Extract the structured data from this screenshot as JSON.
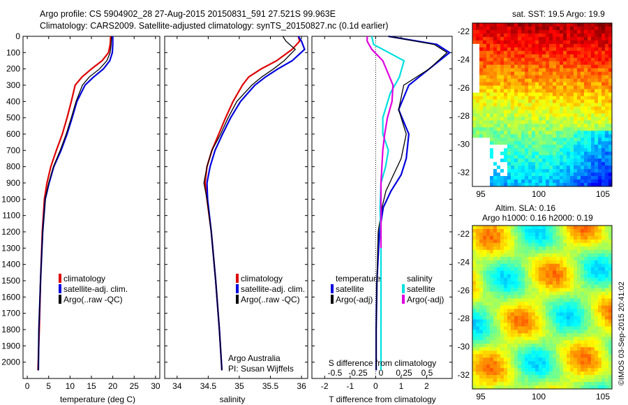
{
  "header": {
    "line1": "Argo profile: CS 5904902_28 27-Aug-2015 20150831_591 27.521S 99.963E",
    "line2": "Climatology: CARS2009. Satellite-adjusted climatology: synTS_20150827.nc (0.1d earlier)"
  },
  "sst_title": "sat. SST: 19.5 Argo: 19.9",
  "sla_title1": "Altim. SLA: 0.16",
  "sla_title2": "Argo h1000: 0.16 h2000: 0.19",
  "stamp": "©IMOS 03-Sep-2015 20:41:02",
  "credit1": "Argo Australia",
  "credit2": "PI: Susan Wijffels",
  "colors": {
    "climatology": "#dd0000",
    "satellite": "#0000dd",
    "argo": "#000000",
    "sal_sat": "#00e0e0",
    "sal_argo": "#e000e0"
  },
  "chart_data": [
    {
      "type": "line",
      "xlabel": "temperature (deg C)",
      "xlim": [
        -1,
        31
      ],
      "xticks": [
        0,
        5,
        10,
        15,
        20,
        25,
        30
      ],
      "ylim": [
        0,
        2100
      ],
      "yticks": [
        0,
        100,
        200,
        300,
        400,
        500,
        600,
        700,
        800,
        900,
        1000,
        1100,
        1200,
        1300,
        1400,
        1500,
        1600,
        1700,
        1800,
        1900,
        2000
      ],
      "legend": [
        "climatology",
        "satellite-adj. clim.",
        "Argo(..raw -QC)"
      ],
      "series": [
        {
          "name": "climatology",
          "color": "climatology",
          "x": [
            19.5,
            19.4,
            19.0,
            17.5,
            15.0,
            12.8,
            11.2,
            10.3,
            9.3,
            8.2,
            6.8,
            5.5,
            4.6,
            4.0,
            3.5,
            3.1,
            2.8,
            2.5
          ],
          "y": [
            0,
            50,
            100,
            150,
            200,
            250,
            300,
            400,
            500,
            600,
            700,
            800,
            900,
            1000,
            1200,
            1500,
            1800,
            2050
          ]
        },
        {
          "name": "satellite-adj. clim.",
          "color": "satellite",
          "x": [
            20.0,
            20.0,
            19.9,
            19.3,
            17.8,
            15.5,
            13.5,
            11.6,
            10.5,
            9.3,
            7.9,
            6.2,
            5.1,
            4.2,
            3.6,
            3.1,
            2.7,
            2.6
          ],
          "y": [
            0,
            50,
            100,
            150,
            200,
            250,
            300,
            400,
            500,
            600,
            700,
            800,
            900,
            1000,
            1200,
            1500,
            1800,
            2050
          ]
        },
        {
          "name": "Argo(..raw -QC)",
          "color": "argo",
          "x": [
            19.7,
            19.6,
            19.4,
            18.6,
            16.9,
            14.5,
            12.9,
            11.4,
            10.3,
            9.1,
            7.7,
            6.1,
            5.0,
            4.2,
            3.6,
            3.1,
            2.7,
            2.6
          ],
          "y": [
            0,
            50,
            100,
            150,
            200,
            250,
            300,
            400,
            500,
            600,
            700,
            800,
            900,
            1000,
            1200,
            1500,
            1800,
            2050
          ]
        }
      ]
    },
    {
      "type": "line",
      "xlabel": "salinity",
      "xlim": [
        33.8,
        36.1
      ],
      "xticks": [
        34,
        34.5,
        35,
        35.5,
        36
      ],
      "ylim": [
        0,
        2100
      ],
      "legend": [
        "climatology",
        "satellite-adj. clim.",
        "Argo(..raw -QC)"
      ],
      "series": [
        {
          "name": "climatology",
          "color": "climatology",
          "x": [
            35.95,
            35.97,
            35.85,
            35.6,
            35.35,
            35.15,
            35.05,
            34.9,
            34.78,
            34.67,
            34.56,
            34.48,
            34.45,
            34.48,
            34.55,
            34.62,
            34.68,
            34.72
          ],
          "y": [
            0,
            30,
            80,
            150,
            200,
            250,
            300,
            400,
            500,
            600,
            700,
            800,
            900,
            1000,
            1200,
            1500,
            1800,
            2050
          ]
        },
        {
          "name": "satellite-adj. clim.",
          "color": "satellite",
          "x": [
            35.95,
            36.0,
            36.05,
            35.85,
            35.62,
            35.42,
            35.25,
            35.02,
            34.86,
            34.73,
            34.61,
            34.53,
            34.48,
            34.49,
            34.55,
            34.62,
            34.68,
            34.72
          ],
          "y": [
            0,
            30,
            80,
            150,
            200,
            250,
            300,
            400,
            500,
            600,
            700,
            800,
            900,
            1000,
            1200,
            1500,
            1800,
            2050
          ]
        },
        {
          "name": "Argo(..raw -QC)",
          "color": "argo",
          "x": [
            35.7,
            35.75,
            35.9,
            35.72,
            35.55,
            35.36,
            35.2,
            34.96,
            34.82,
            34.7,
            34.56,
            34.48,
            34.43,
            34.48,
            34.55,
            34.62,
            34.68,
            34.72
          ],
          "y": [
            0,
            30,
            80,
            150,
            200,
            250,
            300,
            400,
            500,
            600,
            700,
            800,
            900,
            1000,
            1200,
            1500,
            1800,
            2050
          ]
        }
      ]
    },
    {
      "type": "line",
      "xlabel": "T difference from climatology",
      "xlabel2": "S difference from climatology",
      "xlim": [
        -2.5,
        3
      ],
      "xticks": [
        -2,
        -1,
        0,
        1,
        2
      ],
      "xticks2": [
        "-0.5",
        "-0.25",
        "0",
        "0.25",
        "0.5"
      ],
      "ylim": [
        0,
        2100
      ],
      "legend_titles": [
        "temperature",
        "salinity"
      ],
      "legend": [
        "satellite",
        "Argo(-adj)",
        "satellite",
        "Argo(-adj)"
      ],
      "series": [
        {
          "name": "satellite",
          "color": "satellite",
          "x": [
            0.5,
            2.4,
            2.9,
            2.1,
            1.3,
            0.9,
            1.3,
            1.2,
            1.0,
            0.6,
            0.3,
            0.15,
            0.05,
            0.02,
            0.02
          ],
          "y": [
            0,
            50,
            100,
            200,
            300,
            450,
            600,
            750,
            850,
            950,
            1050,
            1200,
            1500,
            1800,
            2050
          ]
        },
        {
          "name": "Argo(-adj)",
          "color": "argo",
          "x": [
            0.5,
            2.3,
            2.8,
            2.1,
            1.1,
            0.9,
            1.2,
            1.0,
            0.7,
            0.4,
            0.25,
            0.1,
            0.05,
            0.02,
            0.02
          ],
          "y": [
            0,
            50,
            100,
            200,
            300,
            450,
            600,
            750,
            850,
            950,
            1050,
            1200,
            1500,
            1800,
            2050
          ]
        },
        {
          "name": "satellite",
          "color": "sal_sat",
          "x": [
            -0.1,
            -0.08,
            0.25,
            0.2,
            0.1,
            0.02,
            0.02,
            0.08,
            0.05,
            0.0,
            -0.01,
            0.0,
            0.0,
            0.0
          ],
          "y": [
            0,
            50,
            150,
            250,
            350,
            500,
            600,
            700,
            800,
            900,
            1050,
            1300,
            1600,
            2050
          ]
        },
        {
          "name": "Argo(-adj)",
          "color": "sal_argo",
          "x": [
            -0.15,
            -0.15,
            -0.1,
            0.02,
            0.13,
            0.12,
            0.07,
            0.04,
            0.02,
            0.01,
            0.0,
            0.0,
            0.0
          ],
          "y": [
            0,
            30,
            80,
            150,
            300,
            400,
            500,
            600,
            700,
            800,
            900,
            1000,
            1300
          ]
        }
      ]
    },
    {
      "type": "heatmap",
      "title": "sat. SST: 19.5 Argo: 19.9",
      "xticks": [
        95,
        100,
        105
      ],
      "yticks": [
        -22,
        -24,
        -26,
        -28,
        -30,
        -32
      ]
    },
    {
      "type": "heatmap",
      "title": "Altim. SLA: 0.16",
      "xticks": [
        95,
        100,
        105
      ],
      "yticks": [
        -22,
        -24,
        -26,
        -28,
        -30,
        -32
      ]
    }
  ]
}
